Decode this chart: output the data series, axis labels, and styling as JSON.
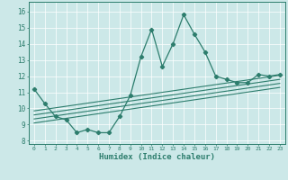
{
  "xlabel": "Humidex (Indice chaleur)",
  "ylabel": "",
  "xlim": [
    -0.5,
    23.5
  ],
  "ylim": [
    7.8,
    16.6
  ],
  "yticks": [
    8,
    9,
    10,
    11,
    12,
    13,
    14,
    15,
    16
  ],
  "xticks": [
    0,
    1,
    2,
    3,
    4,
    5,
    6,
    7,
    8,
    9,
    10,
    11,
    12,
    13,
    14,
    15,
    16,
    17,
    18,
    19,
    20,
    21,
    22,
    23
  ],
  "bg_color": "#cce8e8",
  "line_color": "#2d7d6d",
  "grid_color": "#ffffff",
  "main_line_x": [
    0,
    1,
    2,
    3,
    4,
    5,
    6,
    7,
    8,
    9,
    10,
    11,
    12,
    13,
    14,
    15,
    16,
    17,
    18,
    19,
    20,
    21,
    22,
    23
  ],
  "main_line_y": [
    11.2,
    10.3,
    9.5,
    9.3,
    8.5,
    8.7,
    8.5,
    8.5,
    9.5,
    10.8,
    13.2,
    14.9,
    12.6,
    14.0,
    15.8,
    14.6,
    13.5,
    12.0,
    11.8,
    11.6,
    11.6,
    12.1,
    12.0,
    12.1
  ],
  "reg_lines": [
    {
      "x": [
        0,
        23
      ],
      "y": [
        9.1,
        11.3
      ]
    },
    {
      "x": [
        0,
        23
      ],
      "y": [
        9.35,
        11.55
      ]
    },
    {
      "x": [
        0,
        23
      ],
      "y": [
        9.6,
        11.8
      ]
    },
    {
      "x": [
        0,
        23
      ],
      "y": [
        9.85,
        12.05
      ]
    }
  ]
}
